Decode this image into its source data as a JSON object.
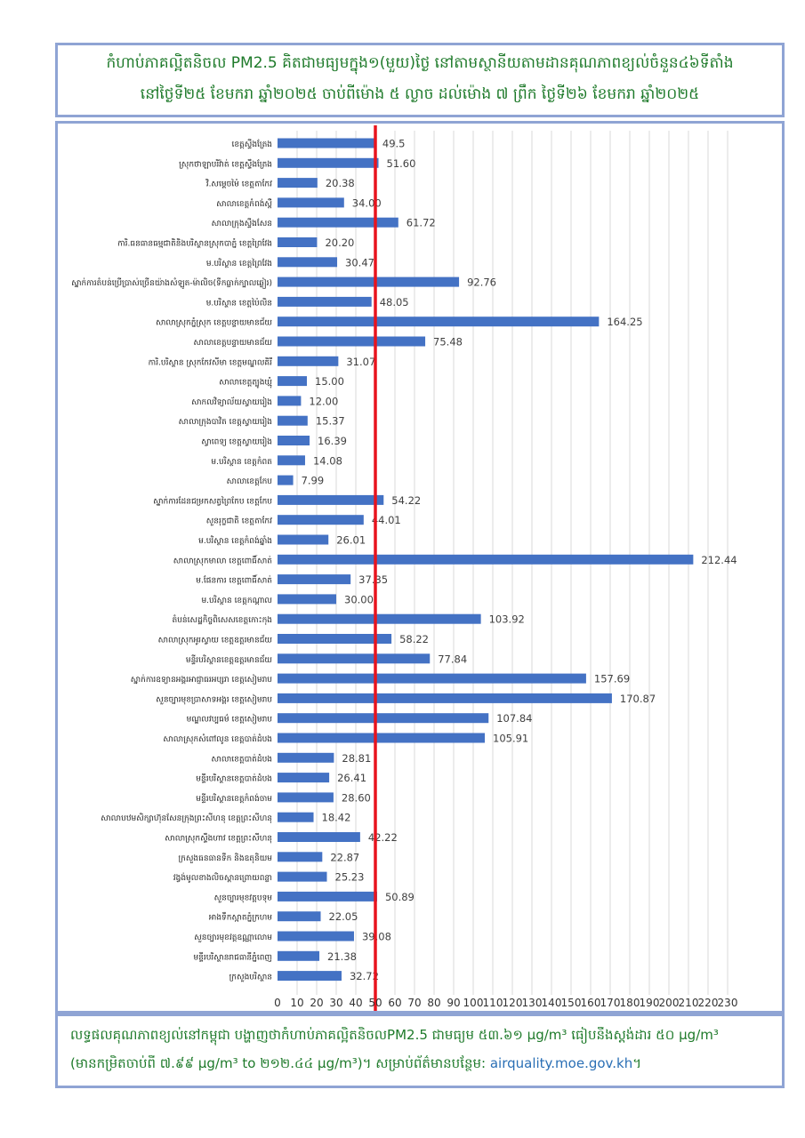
{
  "header": {
    "line1": "កំហាប់ភាគល្អិតនិចល PM2.5 គិតជាមធ្យមក្នុង១(មួយ)ថ្ងៃ នៅតាមស្ថានីយតាមដានគុណភាពខ្យល់ចំនួន៤៦ទីតាំង",
    "line2": "នៅថ្ងៃទី២៥ ខែមករា ឆ្នាំ២០២៥ ចាប់ពីម៉ោង ៥ ល្ងាច ដល់ម៉ោង ៧ ព្រឹក ថ្ងៃទី២៦ ខែមករា ឆ្នាំ២០២៥"
  },
  "footer": {
    "line1": "លទ្ធផលគុណភាពខ្យល់នៅកម្ពុជា បង្ហាញថាកំហាប់ភាគល្អិតនិចលPM2.5 ជាមធ្យម ៥៣.៦១ µg/m³ ធៀបនឹងស្តង់ដារ ៥០ µg/m³",
    "line2_prefix": "(មានកម្រិតចាប់ពី ៧.៩៩ µg/m³ to ២១២.៤៤ µg/m³)។ សម្រាប់ព័ត៌មានបន្ថែម: ",
    "link": "airquality.moe.gov.kh",
    "line2_suffix": "។"
  },
  "colors": {
    "bar": "#4472c4",
    "threshold": "#e8141e",
    "grid": "#d9d9d9",
    "title": "#1e7a2a",
    "border": "#8fa4d4"
  },
  "chart_data": {
    "type": "bar",
    "orientation": "horizontal",
    "xlim": [
      0,
      230
    ],
    "xticks": [
      0,
      10,
      20,
      30,
      40,
      50,
      60,
      70,
      80,
      90,
      100,
      110,
      120,
      130,
      140,
      150,
      160,
      170,
      180,
      190,
      200,
      210,
      220,
      230
    ],
    "threshold": 50,
    "grid": true,
    "categories": [
      "ខេត្តស្ទឹងត្រែង",
      "ស្រុកថាឡាបរិវ៉ាត់ ខេត្តស្ទឹងត្រែង",
      "វិ.សម្តេចម៉ៃ ខេត្តតាកែវ",
      "សាលាខេត្តកំពង់ស្ពឺ",
      "សាលាក្រុងស្ទឹងសែន",
      "ការិ.ធនធានធម្មជាតិនិងបរិស្ថានស្រុកបាភ្នំ ខេត្តព្រៃវែង",
      "ម.បរិស្ថាន ខេត្តព្រៃវែង",
      "ស្នាក់ការតំបន់ប្រើប្រាស់ច្រើនយ៉ាងសំឡូត-ម៉ាលិច(ទឹកធ្លាក់ក្បាលឆ្ងៀរ)",
      "ម.បរិស្ថាន ខេត្តប៉ៃលិន",
      "សាលាស្រុកភ្នំស្រុក ខេត្តបន្ទាយមានជ័យ",
      "សាលាខេត្តបន្ទាយមានជ័យ",
      "ការិ.បរិស្ថាន ស្រុកកែវសីមា ខេត្តមណ្ឌលគិរី",
      "សាលាខេត្តត្បូងឃ្មុំ",
      "សាកលវិទ្យាល័យស្វាយរៀង",
      "សាលាក្រុងបាវិត ខេត្តស្វាយរៀង",
      "ស្វាពេទ្យ ខេត្តស្វាយរៀង",
      "ម.បរិស្ថាន ខេត្តកំពត",
      "សាលាខេត្តកែប",
      "ស្នាក់ការដែនជម្រកសត្វព្រៃកែប ខេត្តកែប",
      "សួនរុក្ខជាតិ ខេត្តតាកែវ",
      "ម.បរិស្ថាន ខេត្តកំពង់ឆ្នាំង",
      "សាលាស្រុកមាលា ខេត្តពោធិ៍សាត់",
      "ម.ផែនការ ខេត្តពោធិ៍សាត់",
      "ម.បរិស្ថាន ខេត្តកណ្តាល",
      "តំបន់សេដ្ឋកិច្ចពិសេសខេត្តកោះកុង",
      "សាលាស្រុកអូរស្វាយ ខេត្តឧត្តរមានជ័យ",
      "មន្ទីរបរិស្ថានខេត្តឧត្តរមានជ័យ",
      "ស្នាក់ការឧទ្យានអង្គរអាជ្ញាធរអប្សរា ខេត្តសៀមរាប",
      "សួនច្បារមុខប្រាសាទអង្គរ ខេត្តសៀមរាប",
      "មណ្ឌលវប្បធម៌ ខេត្តសៀមរាប",
      "សាលាស្រុកសំពៅលូន ខេត្តបាត់ដំបង",
      "សាលាខេត្តបាត់ដំបង",
      "មន្ទីរបរិស្ថានខេត្តបាត់ដំបង",
      "មន្ទីរបរិស្ថានខេត្តកំពង់ចាម",
      "សាលាបឋមសិក្សាហ៊ុនសែនក្រុងព្រះសីហនុ ខេត្តព្រះសីហនុ",
      "សាលាស្រុកស្ទឹងហាវ ខេត្តព្រះសីហនុ",
      "ក្រសួងធនធានទឹក និងឧតុនិយម",
      "វង្វង់មូលខាងលិចស្ពានព្រោយពន្លា",
      "សួនច្បារមុខវត្តបទុម",
      "អាងទឹកស្អាតភ្នំក្រហម",
      "សួនច្បារមុខវត្តឧណ្ណាលោម",
      "មន្ទីរបរិស្ថានរាជធានីភ្នំពេញ",
      "ក្រសួងបរិស្ថាន"
    ],
    "values": [
      49.5,
      51.6,
      20.38,
      34.0,
      61.72,
      20.2,
      30.47,
      92.76,
      48.05,
      164.25,
      75.48,
      31.07,
      15.0,
      12.0,
      15.37,
      16.39,
      14.08,
      7.99,
      54.22,
      44.01,
      26.01,
      212.44,
      37.35,
      30.0,
      103.92,
      58.22,
      77.84,
      157.69,
      170.87,
      107.84,
      105.91,
      28.81,
      26.41,
      28.6,
      18.42,
      42.22,
      22.87,
      25.23,
      50.89,
      22.05,
      39.08,
      21.38,
      32.72
    ],
    "value_labels": [
      "49.5",
      "51.60",
      "20.38",
      "34.00",
      "61.72",
      "20.20",
      "30.47",
      "92.76",
      "48.05",
      "164.25",
      "75.48",
      "31.07",
      "15.00",
      "12.00",
      "15.37",
      "16.39",
      "14.08",
      "7.99",
      "54.22",
      "44.01",
      "26.01",
      "212.44",
      "37.35",
      "30.00",
      "103.92",
      "58.22",
      "77.84",
      "157.69",
      "170.87",
      "107.84",
      "105.91",
      "28.81",
      "26.41",
      "28.60",
      "18.42",
      "42.22",
      "22.87",
      "25.23",
      "50.89",
      "22.05",
      "39.08",
      "21.38",
      "32.72"
    ]
  }
}
